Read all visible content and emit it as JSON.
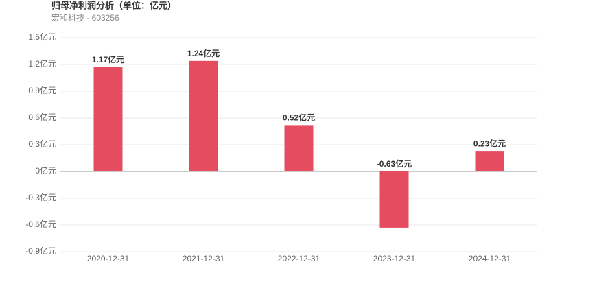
{
  "chart_data": {
    "type": "bar",
    "title": "归母净利润分析（单位：亿元）",
    "subtitle": "宏和科技 - 603256",
    "categories": [
      "2020-12-31",
      "2021-12-31",
      "2022-12-31",
      "2023-12-31",
      "2024-12-31"
    ],
    "values": [
      1.17,
      1.24,
      0.52,
      -0.63,
      0.23
    ],
    "value_labels": [
      "1.17亿元",
      "1.24亿元",
      "0.52亿元",
      "-0.63亿元",
      "0.23亿元"
    ],
    "color": "#e64c60",
    "ylim": [
      -0.9,
      1.5
    ],
    "yticks": [
      {
        "value": -0.9,
        "label": "-0.9亿元"
      },
      {
        "value": -0.6,
        "label": "-0.6亿元"
      },
      {
        "value": -0.3,
        "label": "-0.3亿元"
      },
      {
        "value": 0,
        "label": "0亿元"
      },
      {
        "value": 0.3,
        "label": "0.3亿元"
      },
      {
        "value": 0.6,
        "label": "0.6亿元"
      },
      {
        "value": 0.9,
        "label": "0.9亿元"
      },
      {
        "value": 1.2,
        "label": "1.2亿元"
      },
      {
        "value": 1.5,
        "label": "1.5亿元"
      }
    ],
    "grid": true
  }
}
